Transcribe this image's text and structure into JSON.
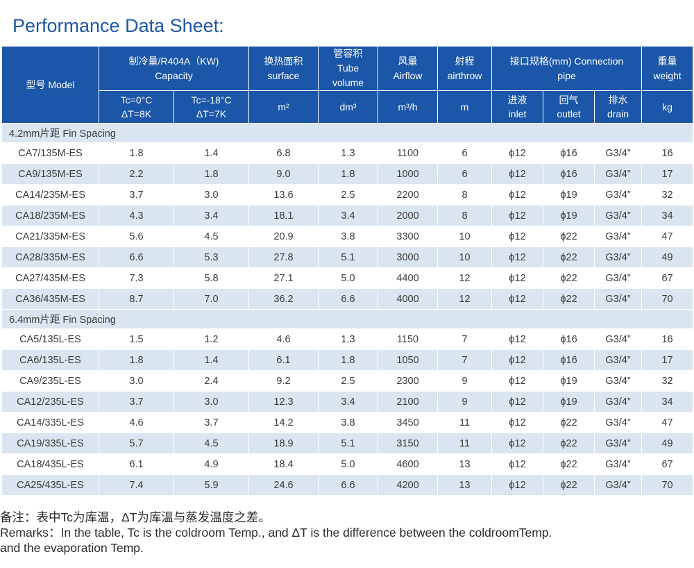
{
  "title": "Performance Data Sheet:",
  "header": {
    "model": "型号 Model",
    "capacity_cn": "制冷量/R404A（KW)",
    "capacity_en": "Capacity",
    "surface_cn": "换热面积",
    "surface_en": "surface",
    "tube_cn": "管容积",
    "tube_en1": "Tube",
    "tube_en2": "volume",
    "airflow_cn": "风量",
    "airflow_en": "Airflow",
    "airthrow_cn": "射程",
    "airthrow_en": "airthrow",
    "pipe_cn": "接口规格(mm) Connection",
    "pipe_en": "pipe",
    "weight_cn": "重量",
    "weight_en": "weight",
    "tc1_line1": "Tc=0°C",
    "tc1_line2": "ΔT=8K",
    "tc2_line1": "Tc=-18°C",
    "tc2_line2": "ΔT=7K",
    "unit_surface": "m²",
    "unit_tube": "dm³",
    "unit_airflow": "m³/h",
    "unit_airthrow": "m",
    "inlet_cn": "进液",
    "inlet_en": "inlet",
    "outlet_cn": "回气",
    "outlet_en": "outlet",
    "drain_cn": "排水",
    "drain_en": "drain",
    "unit_weight": "kg"
  },
  "sections": [
    {
      "label": "4.2mm片距  Fin Spacing",
      "rows": [
        [
          "CA7/135M-ES",
          "1.8",
          "1.4",
          "6.8",
          "1.3",
          "1100",
          "6",
          "ϕ12",
          "ϕ16",
          "G3/4”",
          "16"
        ],
        [
          "CA9/135M-ES",
          "2.2",
          "1.8",
          "9.0",
          "1.8",
          "1000",
          "6",
          "ϕ12",
          "ϕ16",
          "G3/4”",
          "17"
        ],
        [
          "CA14/235M-ES",
          "3.7",
          "3.0",
          "13.6",
          "2.5",
          "2200",
          "8",
          "ϕ12",
          "ϕ19",
          "G3/4”",
          "32"
        ],
        [
          "CA18/235M-ES",
          "4.3",
          "3.4",
          "18.1",
          "3.4",
          "2000",
          "8",
          "ϕ12",
          "ϕ19",
          "G3/4”",
          "34"
        ],
        [
          "CA21/335M-ES",
          "5.6",
          "4.5",
          "20.9",
          "3.8",
          "3300",
          "10",
          "ϕ12",
          "ϕ22",
          "G3/4”",
          "47"
        ],
        [
          "CA28/335M-ES",
          "6.6",
          "5.3",
          "27.8",
          "5.1",
          "3000",
          "10",
          "ϕ12",
          "ϕ22",
          "G3/4”",
          "49"
        ],
        [
          "CA27/435M-ES",
          "7.3",
          "5.8",
          "27.1",
          "5.0",
          "4400",
          "12",
          "ϕ12",
          "ϕ22",
          "G3/4”",
          "67"
        ],
        [
          "CA36/435M-ES",
          "8.7",
          "7.0",
          "36.2",
          "6.6",
          "4000",
          "12",
          "ϕ12",
          "ϕ22",
          "G3/4”",
          "70"
        ]
      ]
    },
    {
      "label": "6.4mm片距  Fin Spacing",
      "rows": [
        [
          "CA5/135L-ES",
          "1.5",
          "1.2",
          "4.6",
          "1.3",
          "1150",
          "7",
          "ϕ12",
          "ϕ16",
          "G3/4”",
          "16"
        ],
        [
          "CA6/135L-ES",
          "1.8",
          "1.4",
          "6.1",
          "1.8",
          "1050",
          "7",
          "ϕ12",
          "ϕ16",
          "G3/4”",
          "17"
        ],
        [
          "CA9/235L-ES",
          "3.0",
          "2.4",
          "9.2",
          "2.5",
          "2300",
          "9",
          "ϕ12",
          "ϕ19",
          "G3/4”",
          "32"
        ],
        [
          "CA12/235L-ES",
          "3.7",
          "3.0",
          "12.3",
          "3.4",
          "2100",
          "9",
          "ϕ12",
          "ϕ19",
          "G3/4”",
          "34"
        ],
        [
          "CA14/335L-ES",
          "4.6",
          "3.7",
          "14.2",
          "3.8",
          "3450",
          "11",
          "ϕ12",
          "ϕ22",
          "G3/4”",
          "47"
        ],
        [
          "CA19/335L-ES",
          "5.7",
          "4.5",
          "18.9",
          "5.1",
          "3150",
          "11",
          "ϕ12",
          "ϕ22",
          "G3/4”",
          "49"
        ],
        [
          "CA18/435L-ES",
          "6.1",
          "4.9",
          "18.4",
          "5.0",
          "4600",
          "13",
          "ϕ12",
          "ϕ22",
          "G3/4”",
          "67"
        ],
        [
          "CA25/435L-ES",
          "7.4",
          "5.9",
          "24.6",
          "6.6",
          "4200",
          "13",
          "ϕ12",
          "ϕ22",
          "G3/4”",
          "70"
        ]
      ]
    }
  ],
  "remarks": {
    "line1": "备注：表中Tc为库温，ΔT为库温与蒸发温度之差。",
    "line2": "Remarks：In the table, Tc is the coldroom Temp., and ΔT is the difference between the coldroomTemp.",
    "line3": "and the evaporation Temp."
  }
}
